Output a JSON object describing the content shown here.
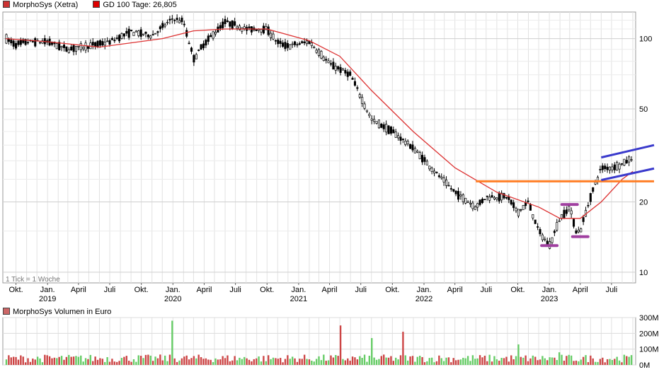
{
  "legend_top": [
    {
      "label": "MorphoSys (Xetra)",
      "color": "#cc3333"
    },
    {
      "label": "GD 100 Tage: 26,805",
      "color": "#dd0000"
    }
  ],
  "legend_bottom": {
    "label": "MorphoSys Volumen in Euro",
    "color": "#cc6666"
  },
  "footnote": "1 Tick = 1 Woche",
  "chart_data": [
    {
      "type": "candlestick",
      "title": "MorphoSys (Xetra)",
      "y_scale": "log",
      "ylim": [
        9,
        130
      ],
      "y_ticks": [
        10,
        20,
        50,
        100
      ],
      "x_ticks": [
        {
          "label": "Okt.",
          "year": ""
        },
        {
          "label": "Jan.",
          "year": "2019"
        },
        {
          "label": "April",
          "year": ""
        },
        {
          "label": "Juli",
          "year": ""
        },
        {
          "label": "Okt.",
          "year": ""
        },
        {
          "label": "Jan.",
          "year": "2020"
        },
        {
          "label": "April",
          "year": ""
        },
        {
          "label": "Juli",
          "year": ""
        },
        {
          "label": "Okt.",
          "year": ""
        },
        {
          "label": "Jan.",
          "year": "2021"
        },
        {
          "label": "April",
          "year": ""
        },
        {
          "label": "Juli",
          "year": ""
        },
        {
          "label": "Okt.",
          "year": ""
        },
        {
          "label": "Jan.",
          "year": "2022"
        },
        {
          "label": "April",
          "year": ""
        },
        {
          "label": "Juli",
          "year": ""
        },
        {
          "label": "Okt.",
          "year": ""
        },
        {
          "label": "Jan.",
          "year": "2023"
        },
        {
          "label": "April",
          "year": ""
        },
        {
          "label": "Juli",
          "year": ""
        }
      ],
      "x_range": [
        "2018-09",
        "2023-09"
      ],
      "price_path": [
        {
          "x": "2018-09",
          "y": 100
        },
        {
          "x": "2018-10",
          "y": 94
        },
        {
          "x": "2018-11",
          "y": 97
        },
        {
          "x": "2019-01",
          "y": 97
        },
        {
          "x": "2019-03",
          "y": 90
        },
        {
          "x": "2019-05",
          "y": 93
        },
        {
          "x": "2019-07",
          "y": 97
        },
        {
          "x": "2019-09",
          "y": 107
        },
        {
          "x": "2019-11",
          "y": 103
        },
        {
          "x": "2020-01",
          "y": 122
        },
        {
          "x": "2020-02",
          "y": 118
        },
        {
          "x": "2020-03",
          "y": 82
        },
        {
          "x": "2020-04",
          "y": 95
        },
        {
          "x": "2020-06",
          "y": 118
        },
        {
          "x": "2020-08",
          "y": 110
        },
        {
          "x": "2020-10",
          "y": 110
        },
        {
          "x": "2020-11",
          "y": 96
        },
        {
          "x": "2020-12",
          "y": 93
        },
        {
          "x": "2021-02",
          "y": 97
        },
        {
          "x": "2021-04",
          "y": 78
        },
        {
          "x": "2021-06",
          "y": 70
        },
        {
          "x": "2021-08",
          "y": 45
        },
        {
          "x": "2021-10",
          "y": 40
        },
        {
          "x": "2021-12",
          "y": 34
        },
        {
          "x": "2022-02",
          "y": 27
        },
        {
          "x": "2022-04",
          "y": 22
        },
        {
          "x": "2022-06",
          "y": 19
        },
        {
          "x": "2022-07",
          "y": 21
        },
        {
          "x": "2022-09",
          "y": 21
        },
        {
          "x": "2022-10",
          "y": 18
        },
        {
          "x": "2022-11",
          "y": 20
        },
        {
          "x": "2022-12",
          "y": 15
        },
        {
          "x": "2023-01",
          "y": 13
        },
        {
          "x": "2023-02",
          "y": 17
        },
        {
          "x": "2023-03",
          "y": 19
        },
        {
          "x": "2023-03-20",
          "y": 15
        },
        {
          "x": "2023-04",
          "y": 15
        },
        {
          "x": "2023-05",
          "y": 21
        },
        {
          "x": "2023-06",
          "y": 28
        },
        {
          "x": "2023-07",
          "y": 28
        },
        {
          "x": "2023-08",
          "y": 29
        },
        {
          "x": "2023-09",
          "y": 31
        }
      ],
      "ma_series": {
        "name": "GD 100 Tage",
        "color": "#dd3333",
        "points": [
          {
            "x": "2018-09",
            "y": 100
          },
          {
            "x": "2019-01",
            "y": 97
          },
          {
            "x": "2019-06",
            "y": 92
          },
          {
            "x": "2019-12",
            "y": 100
          },
          {
            "x": "2020-03",
            "y": 108
          },
          {
            "x": "2020-06",
            "y": 110
          },
          {
            "x": "2020-10",
            "y": 110
          },
          {
            "x": "2021-02",
            "y": 98
          },
          {
            "x": "2021-05",
            "y": 84
          },
          {
            "x": "2021-08",
            "y": 60
          },
          {
            "x": "2021-12",
            "y": 40
          },
          {
            "x": "2022-04",
            "y": 28
          },
          {
            "x": "2022-08",
            "y": 22
          },
          {
            "x": "2022-12",
            "y": 19
          },
          {
            "x": "2023-02",
            "y": 17
          },
          {
            "x": "2023-04",
            "y": 17
          },
          {
            "x": "2023-06",
            "y": 20
          },
          {
            "x": "2023-08",
            "y": 25
          },
          {
            "x": "2023-09",
            "y": 27
          }
        ]
      },
      "annotations": [
        {
          "type": "hline",
          "color": "#ff7f27",
          "y": 24.5,
          "x_from": "2022-06",
          "x_to": "2023-09"
        },
        {
          "type": "line",
          "color": "#3a3acc",
          "from": {
            "x": "2023-06",
            "y": 31
          },
          "to": {
            "x": "2023-09",
            "y": 35
          }
        },
        {
          "type": "line",
          "color": "#3a3acc",
          "from": {
            "x": "2023-06",
            "y": 24.8
          },
          "to": {
            "x": "2023-09",
            "y": 27.8
          }
        },
        {
          "type": "marker",
          "color": "#a040a0",
          "x": "2023-01",
          "y": 13
        },
        {
          "type": "marker",
          "color": "#a040a0",
          "x": "2023-03",
          "y": 19.5
        },
        {
          "type": "marker",
          "color": "#a040a0",
          "x": "2023-04",
          "y": 14.2
        }
      ],
      "grid": true,
      "up_color": "#ffffff",
      "down_color": "#000000"
    },
    {
      "type": "bar",
      "title": "MorphoSys Volumen in Euro",
      "y_ticks": [
        "0M",
        "100M",
        "200M",
        "300M"
      ],
      "ylim": [
        0,
        300
      ],
      "unit": "M",
      "up_color": "#66cc66",
      "down_color": "#cc4444",
      "peaks": [
        {
          "x": "2020-01",
          "value": 280
        },
        {
          "x": "2021-05",
          "value": 250
        },
        {
          "x": "2021-08",
          "value": 170
        },
        {
          "x": "2021-11",
          "value": 210
        },
        {
          "x": "2022-10",
          "value": 130
        },
        {
          "x": "2023-02",
          "value": 80
        }
      ],
      "typical_value": 55,
      "grid": true
    }
  ]
}
